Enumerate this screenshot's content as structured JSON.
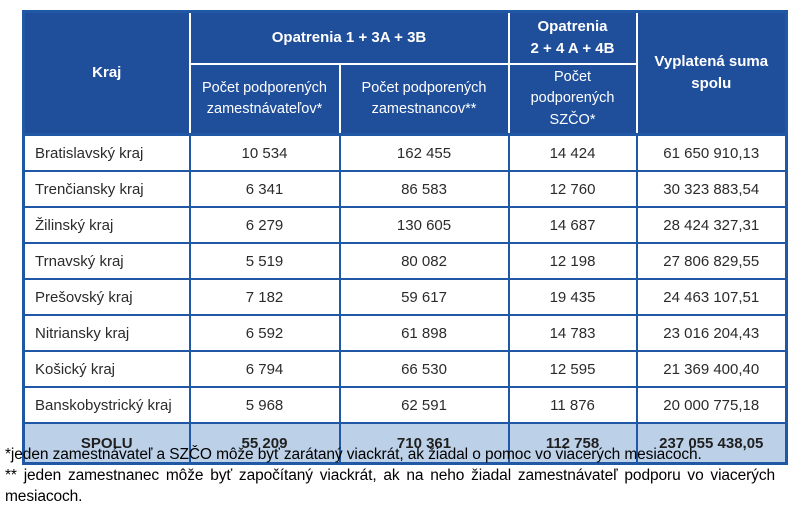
{
  "colors": {
    "header_bg": "#1f4e9b",
    "grid_blue": "#2058a6",
    "total_bg": "#bcd0e8"
  },
  "table": {
    "header": {
      "kraj": "Kraj",
      "group1": "Opatrenia 1 + 3A + 3B",
      "group2_line1": "Opatrenia",
      "group2_line2": "2 + 4 A + 4B",
      "employers": "Počet podporených zamestnávateľov*",
      "employees": "Počet podporených zamestnancov**",
      "szco": "Počet podporených SZČO*",
      "suma": "Vyplatená suma spolu"
    },
    "rows": [
      {
        "kraj": "Bratislavský kraj",
        "employers": "10 534",
        "employees": "162 455",
        "szco": "14 424",
        "suma": "61 650 910,13"
      },
      {
        "kraj": "Trenčiansky kraj",
        "employers": "6 341",
        "employees": "86 583",
        "szco": "12 760",
        "suma": "30 323 883,54"
      },
      {
        "kraj": "Žilinský kraj",
        "employers": "6 279",
        "employees": "130 605",
        "szco": "14 687",
        "suma": "28 424 327,31"
      },
      {
        "kraj": "Trnavský kraj",
        "employers": "5 519",
        "employees": "80 082",
        "szco": "12 198",
        "suma": "27 806 829,55"
      },
      {
        "kraj": "Prešovský kraj",
        "employers": "7 182",
        "employees": "59 617",
        "szco": "19 435",
        "suma": "24 463 107,51"
      },
      {
        "kraj": "Nitriansky kraj",
        "employers": "6 592",
        "employees": "61 898",
        "szco": "14 783",
        "suma": "23 016 204,43"
      },
      {
        "kraj": "Košický kraj",
        "employers": "6 794",
        "employees": "66 530",
        "szco": "12 595",
        "suma": "21 369 400,40"
      },
      {
        "kraj": "Banskobystrický kraj",
        "employers": "5 968",
        "employees": "62 591",
        "szco": "11 876",
        "suma": "20 000 775,18"
      }
    ],
    "total": {
      "label": "SPOLU",
      "employers": "55 209",
      "employees": "710 361",
      "szco": "112 758",
      "suma": "237 055 438,05"
    }
  },
  "footnotes": [
    "*jeden zamestnávateľ a SZČO môže byť zarátaný viackrát, ak žiadal o pomoc vo viacerých mesiacoch.",
    "** jeden zamestnanec môže byť započítaný viackrát, ak na neho žiadal zamestnávateľ podporu vo viacerých mesiacoch."
  ]
}
